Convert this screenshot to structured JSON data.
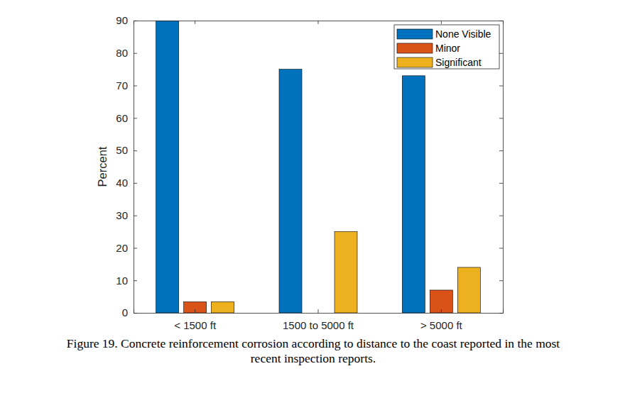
{
  "chart_data": {
    "type": "bar",
    "caption": "Figure 19. Concrete reinforcement corrosion according to distance to the coast reported in the most recent inspection reports.",
    "y_label": "Percent",
    "categories": [
      "< 1500 ft",
      "1500 to 5000 ft",
      "> 5000 ft"
    ],
    "series": [
      {
        "name": "None Visible",
        "color": "#0072bd",
        "values": [
          90,
          75,
          73
        ]
      },
      {
        "name": "Minor",
        "color": "#d95319",
        "values": [
          3.4,
          0,
          7
        ]
      },
      {
        "name": "Significant",
        "color": "#edb120",
        "values": [
          3.4,
          25,
          14
        ]
      }
    ],
    "ylim": [
      0,
      90
    ],
    "yticks": [
      0,
      10,
      20,
      30,
      40,
      50,
      60,
      70,
      80,
      90
    ],
    "grid": false,
    "legend": "northeast"
  }
}
